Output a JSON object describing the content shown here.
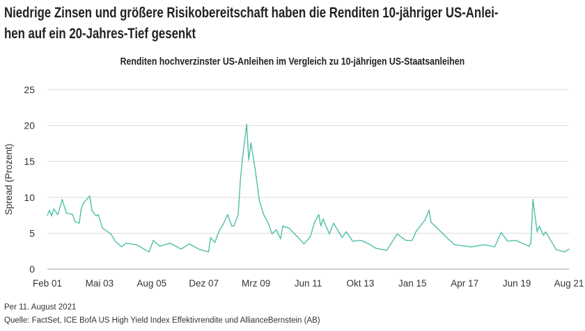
{
  "title_lines": [
    "Niedrige Zinsen und größere Risikobereitschaft haben die Renditen 10-jähriger US-Anlei-",
    "hen auf ein 20-Jahres-Tief gesenkt"
  ],
  "footer": {
    "date_note": "Per 11. August 2021",
    "source": "Quelle: FactSet, ICE BofA US High Yield Index Effektivrendite und AllianceBernstein (AB)"
  },
  "chart_data": {
    "type": "line",
    "title": "Renditen hochverzinster US-Anleihen im Vergleich zu 10-jährigen US-Staatsanleihen",
    "xlabel": "",
    "ylabel": "Spread (Prozent)",
    "xlim": [
      "2001-02",
      "2021-08"
    ],
    "ylim": [
      0,
      25
    ],
    "yticks": [
      0,
      5,
      10,
      15,
      20,
      25
    ],
    "xtick_labels": [
      "Feb 01",
      "Mai 03",
      "Aug 05",
      "Dez 07",
      "Mrz 09",
      "Jun 11",
      "Okt 13",
      "Jan 15",
      "Apr 17",
      "Jun 19",
      "Aug 21"
    ],
    "grid": "horizontal",
    "line_color": "#4dbfa8",
    "grid_color": "#d9d9d9",
    "series": [
      {
        "x": [
          "2001-02",
          "2001-03",
          "2001-04",
          "2001-05",
          "2001-07",
          "2001-09",
          "2001-11",
          "2002-02",
          "2002-03",
          "2002-05",
          "2002-06",
          "2002-07",
          "2002-10",
          "2002-11",
          "2003-01",
          "2003-02",
          "2003-04",
          "2003-08",
          "2003-10",
          "2004-01",
          "2004-03",
          "2004-08",
          "2004-11",
          "2005-02",
          "2005-04",
          "2005-07",
          "2005-12",
          "2006-05",
          "2006-09",
          "2007-02",
          "2007-06",
          "2007-07",
          "2007-09",
          "2007-11",
          "2008-01",
          "2008-03",
          "2008-05",
          "2008-06",
          "2008-08",
          "2008-09",
          "2008-10",
          "2008-12",
          "2009-01",
          "2009-02",
          "2009-04",
          "2009-06",
          "2009-08",
          "2009-10",
          "2009-12",
          "2010-02",
          "2010-04",
          "2010-05",
          "2010-08",
          "2011-01",
          "2011-03",
          "2011-06",
          "2011-08",
          "2011-10",
          "2011-11",
          "2011-12",
          "2012-03",
          "2012-05",
          "2012-09",
          "2012-11",
          "2013-02",
          "2013-06",
          "2013-09",
          "2014-01",
          "2014-06",
          "2014-11",
          "2015-03",
          "2015-06",
          "2015-08",
          "2015-12",
          "2016-02",
          "2016-03",
          "2016-06",
          "2016-10",
          "2017-02",
          "2017-10",
          "2018-04",
          "2018-09",
          "2018-12",
          "2019-03",
          "2019-07",
          "2020-01",
          "2020-02",
          "2020-03",
          "2020-04",
          "2020-05",
          "2020-06",
          "2020-08",
          "2020-09",
          "2020-12",
          "2021-02",
          "2021-06",
          "2021-08"
        ],
        "y": [
          7.5,
          8.2,
          7.4,
          8.4,
          7.6,
          9.7,
          7.8,
          7.6,
          6.6,
          6.4,
          8.4,
          9.2,
          10.2,
          8.2,
          7.4,
          7.6,
          5.7,
          4.9,
          3.9,
          3.1,
          3.6,
          3.4,
          2.9,
          2.4,
          4.0,
          3.2,
          3.6,
          2.8,
          3.5,
          2.7,
          2.4,
          4.4,
          3.7,
          5.3,
          6.3,
          7.6,
          6.0,
          6.0,
          7.6,
          12.3,
          15.4,
          20.2,
          15.2,
          17.6,
          13.9,
          9.5,
          7.6,
          6.5,
          4.9,
          5.5,
          4.2,
          6.0,
          5.7,
          4.2,
          3.5,
          4.5,
          6.5,
          7.6,
          6.0,
          7.0,
          4.9,
          6.4,
          4.4,
          5.2,
          3.9,
          4.0,
          3.6,
          2.9,
          2.6,
          4.9,
          4.0,
          4.0,
          5.3,
          6.8,
          8.2,
          6.5,
          5.7,
          4.5,
          3.4,
          3.1,
          3.4,
          3.1,
          5.1,
          3.9,
          4.0,
          3.2,
          3.6,
          9.7,
          7.4,
          5.2,
          6.0,
          4.7,
          5.2,
          3.7,
          2.7,
          2.4,
          2.8
        ]
      }
    ]
  }
}
